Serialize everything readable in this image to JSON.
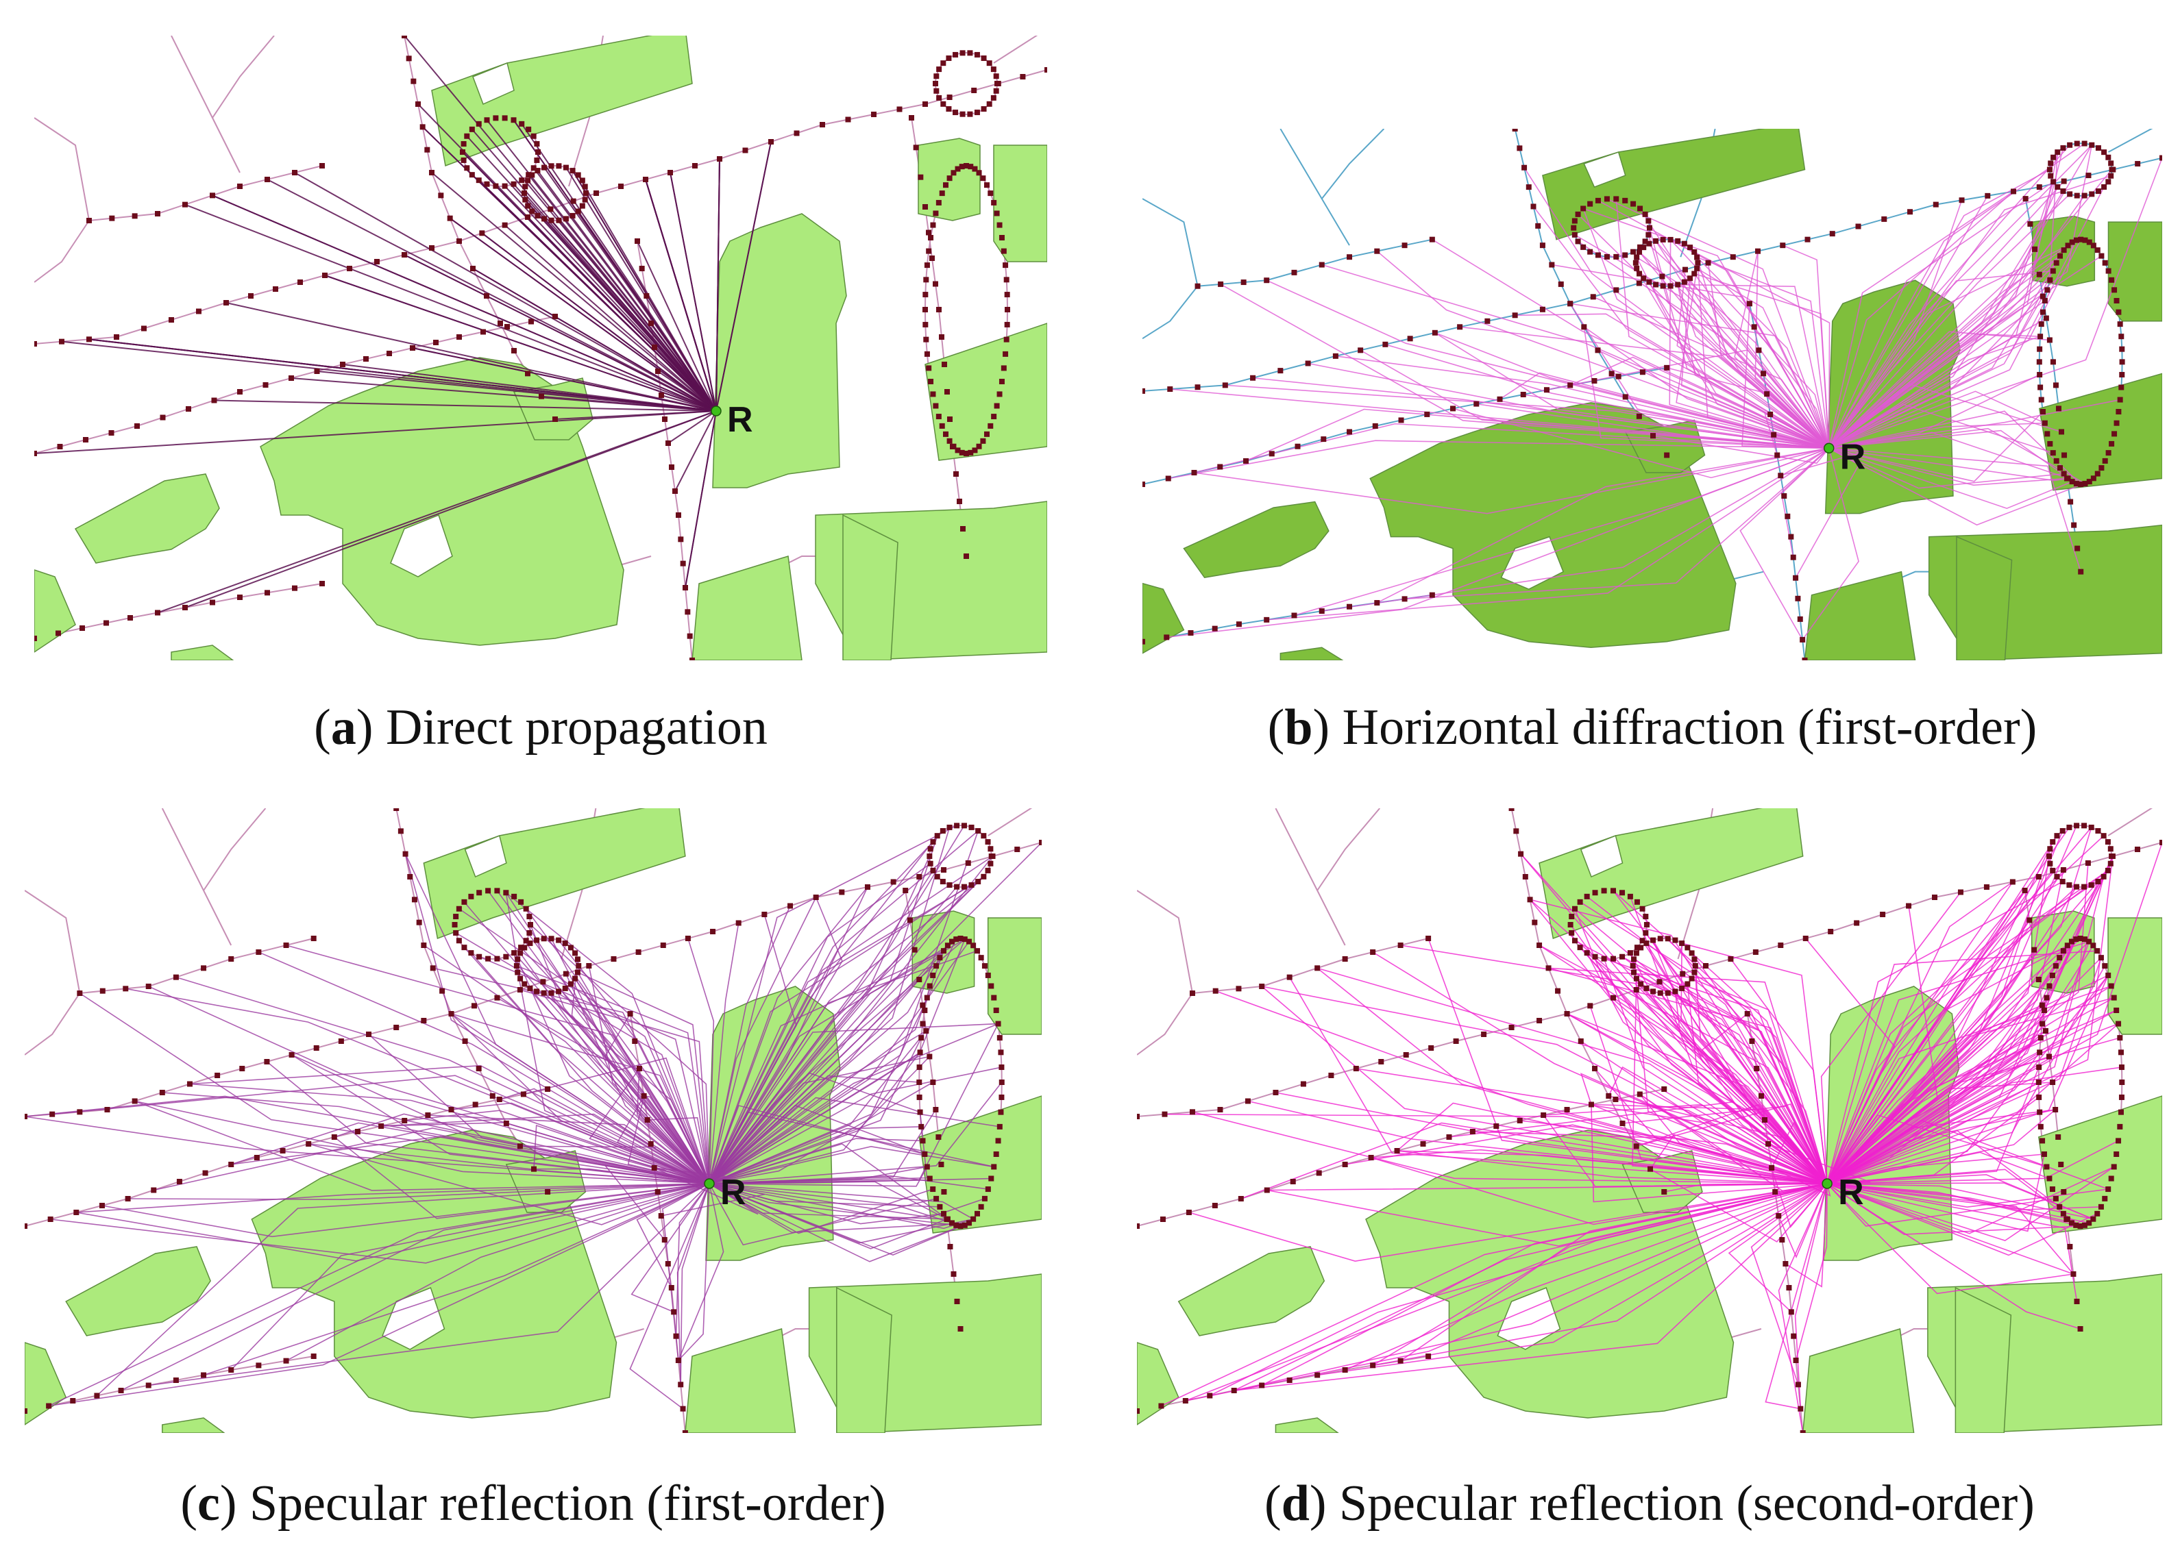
{
  "receiver_label": "R",
  "colors": {
    "building_light": "#acea7c",
    "building_dark": "#7fbf3c",
    "building_stroke": "#5e8f3e",
    "road_pink": "#c78fb5",
    "road_blue": "#5aa7c9",
    "source_point": "#6b0c1b",
    "receiver_point": "#3dbf1a"
  },
  "panels": [
    {
      "letter": "a",
      "text": "Direct propagation",
      "ray_color": "#5a1150",
      "building": "light",
      "road": "pink"
    },
    {
      "letter": "b",
      "text": "Horizontal diffraction (first-order)",
      "ray_color": "#e05ad4",
      "building": "dark",
      "road": "blue"
    },
    {
      "letter": "c",
      "text": "Specular reflection (first-order)",
      "ray_color": "#9b3aa0",
      "building": "light",
      "road": "pink"
    },
    {
      "letter": "d",
      "text": "Specular reflection (second-order)",
      "ray_color": "#f021d0",
      "building": "light",
      "road": "pink"
    }
  ]
}
